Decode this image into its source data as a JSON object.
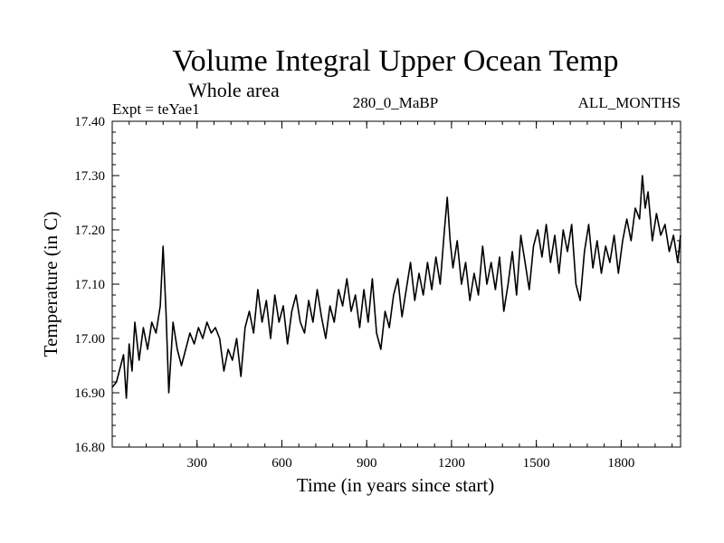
{
  "chart_data": {
    "type": "line",
    "title": "Volume Integral Upper Ocean Temp",
    "subtitle": "Whole area",
    "expt_label": "Expt = teYae1",
    "period_label": "280_0_MaBP",
    "months_label": "ALL_MONTHS",
    "xlabel": "Time (in years since start)",
    "ylabel": "Temperature (in C)",
    "xlim": [
      0,
      2010
    ],
    "ylim": [
      16.8,
      17.4
    ],
    "xticks": [
      300,
      600,
      900,
      1200,
      1500,
      1800
    ],
    "xtick_labels": [
      "300",
      "600",
      "900",
      "1200",
      "1500",
      "1800"
    ],
    "yticks": [
      16.8,
      16.9,
      17.0,
      17.1,
      17.2,
      17.3,
      17.4
    ],
    "ytick_labels": [
      "16.80",
      "16.90",
      "17.00",
      "17.10",
      "17.20",
      "17.30",
      "17.40"
    ],
    "grid": false,
    "series": [
      {
        "name": "teYae1",
        "x": [
          0,
          15,
          30,
          40,
          50,
          60,
          70,
          80,
          95,
          110,
          125,
          140,
          155,
          170,
          180,
          190,
          200,
          215,
          230,
          245,
          260,
          275,
          290,
          305,
          320,
          335,
          350,
          365,
          380,
          395,
          410,
          425,
          440,
          455,
          470,
          485,
          500,
          515,
          530,
          545,
          560,
          575,
          590,
          605,
          620,
          635,
          650,
          665,
          680,
          695,
          710,
          725,
          740,
          755,
          770,
          785,
          800,
          815,
          830,
          845,
          860,
          875,
          890,
          905,
          920,
          935,
          950,
          965,
          980,
          995,
          1010,
          1025,
          1040,
          1055,
          1070,
          1085,
          1100,
          1115,
          1130,
          1145,
          1160,
          1175,
          1185,
          1195,
          1205,
          1220,
          1235,
          1250,
          1265,
          1280,
          1295,
          1310,
          1325,
          1340,
          1355,
          1370,
          1385,
          1400,
          1415,
          1430,
          1445,
          1460,
          1475,
          1490,
          1505,
          1520,
          1535,
          1550,
          1565,
          1580,
          1595,
          1610,
          1625,
          1640,
          1655,
          1670,
          1685,
          1700,
          1715,
          1730,
          1745,
          1760,
          1775,
          1790,
          1805,
          1820,
          1835,
          1850,
          1865,
          1875,
          1885,
          1895,
          1910,
          1925,
          1940,
          1955,
          1970,
          1985,
          2000,
          2010
        ],
        "values": [
          16.91,
          16.92,
          16.95,
          16.97,
          16.89,
          16.99,
          16.94,
          17.03,
          16.96,
          17.02,
          16.98,
          17.03,
          17.01,
          17.06,
          17.17,
          17.05,
          16.9,
          17.03,
          16.98,
          16.95,
          16.98,
          17.01,
          16.99,
          17.02,
          17.0,
          17.03,
          17.01,
          17.02,
          17.0,
          16.94,
          16.98,
          16.96,
          17.0,
          16.93,
          17.02,
          17.05,
          17.01,
          17.09,
          17.03,
          17.07,
          17.0,
          17.08,
          17.03,
          17.06,
          16.99,
          17.05,
          17.08,
          17.03,
          17.01,
          17.07,
          17.03,
          17.09,
          17.04,
          17.0,
          17.06,
          17.03,
          17.09,
          17.06,
          17.11,
          17.05,
          17.08,
          17.02,
          17.09,
          17.03,
          17.11,
          17.01,
          16.98,
          17.05,
          17.02,
          17.08,
          17.11,
          17.04,
          17.09,
          17.14,
          17.07,
          17.12,
          17.08,
          17.14,
          17.09,
          17.15,
          17.1,
          17.2,
          17.26,
          17.18,
          17.13,
          17.18,
          17.1,
          17.14,
          17.07,
          17.12,
          17.08,
          17.17,
          17.1,
          17.14,
          17.09,
          17.15,
          17.05,
          17.1,
          17.16,
          17.08,
          17.19,
          17.14,
          17.09,
          17.17,
          17.2,
          17.15,
          17.21,
          17.14,
          17.19,
          17.12,
          17.2,
          17.16,
          17.21,
          17.1,
          17.07,
          17.16,
          17.21,
          17.13,
          17.18,
          17.12,
          17.17,
          17.14,
          17.19,
          17.12,
          17.18,
          17.22,
          17.18,
          17.24,
          17.22,
          17.3,
          17.24,
          17.27,
          17.18,
          17.23,
          17.19,
          17.21,
          17.16,
          17.19,
          17.14,
          17.19
        ]
      }
    ]
  }
}
